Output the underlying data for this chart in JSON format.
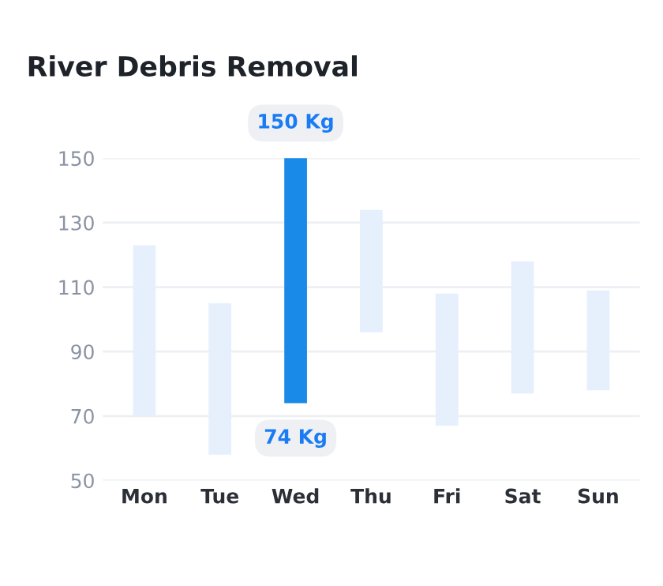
{
  "chart_data": {
    "type": "bar",
    "title": "River Debris Removal",
    "categories": [
      "Mon",
      "Tue",
      "Wed",
      "Thu",
      "Fri",
      "Sat",
      "Sun"
    ],
    "base": [
      70,
      58,
      74,
      96,
      67,
      77,
      78
    ],
    "values": [
      53,
      47,
      76,
      38,
      41,
      41,
      31
    ],
    "colors": [
      "#e6f0fd",
      "#e6f0fd",
      "#1a8ae8",
      "#e6f0fd",
      "#e6f0fd",
      "#e6f0fd",
      "#e6f0fd"
    ],
    "ylim": [
      50,
      150
    ],
    "yticks": [
      50,
      70,
      90,
      110,
      130,
      150
    ],
    "grid": "y",
    "annotations": [
      {
        "text": "150 Kg",
        "x": "Wed",
        "y": 150
      },
      {
        "text": "74 Kg",
        "x": "Wed",
        "y": 74
      }
    ]
  }
}
